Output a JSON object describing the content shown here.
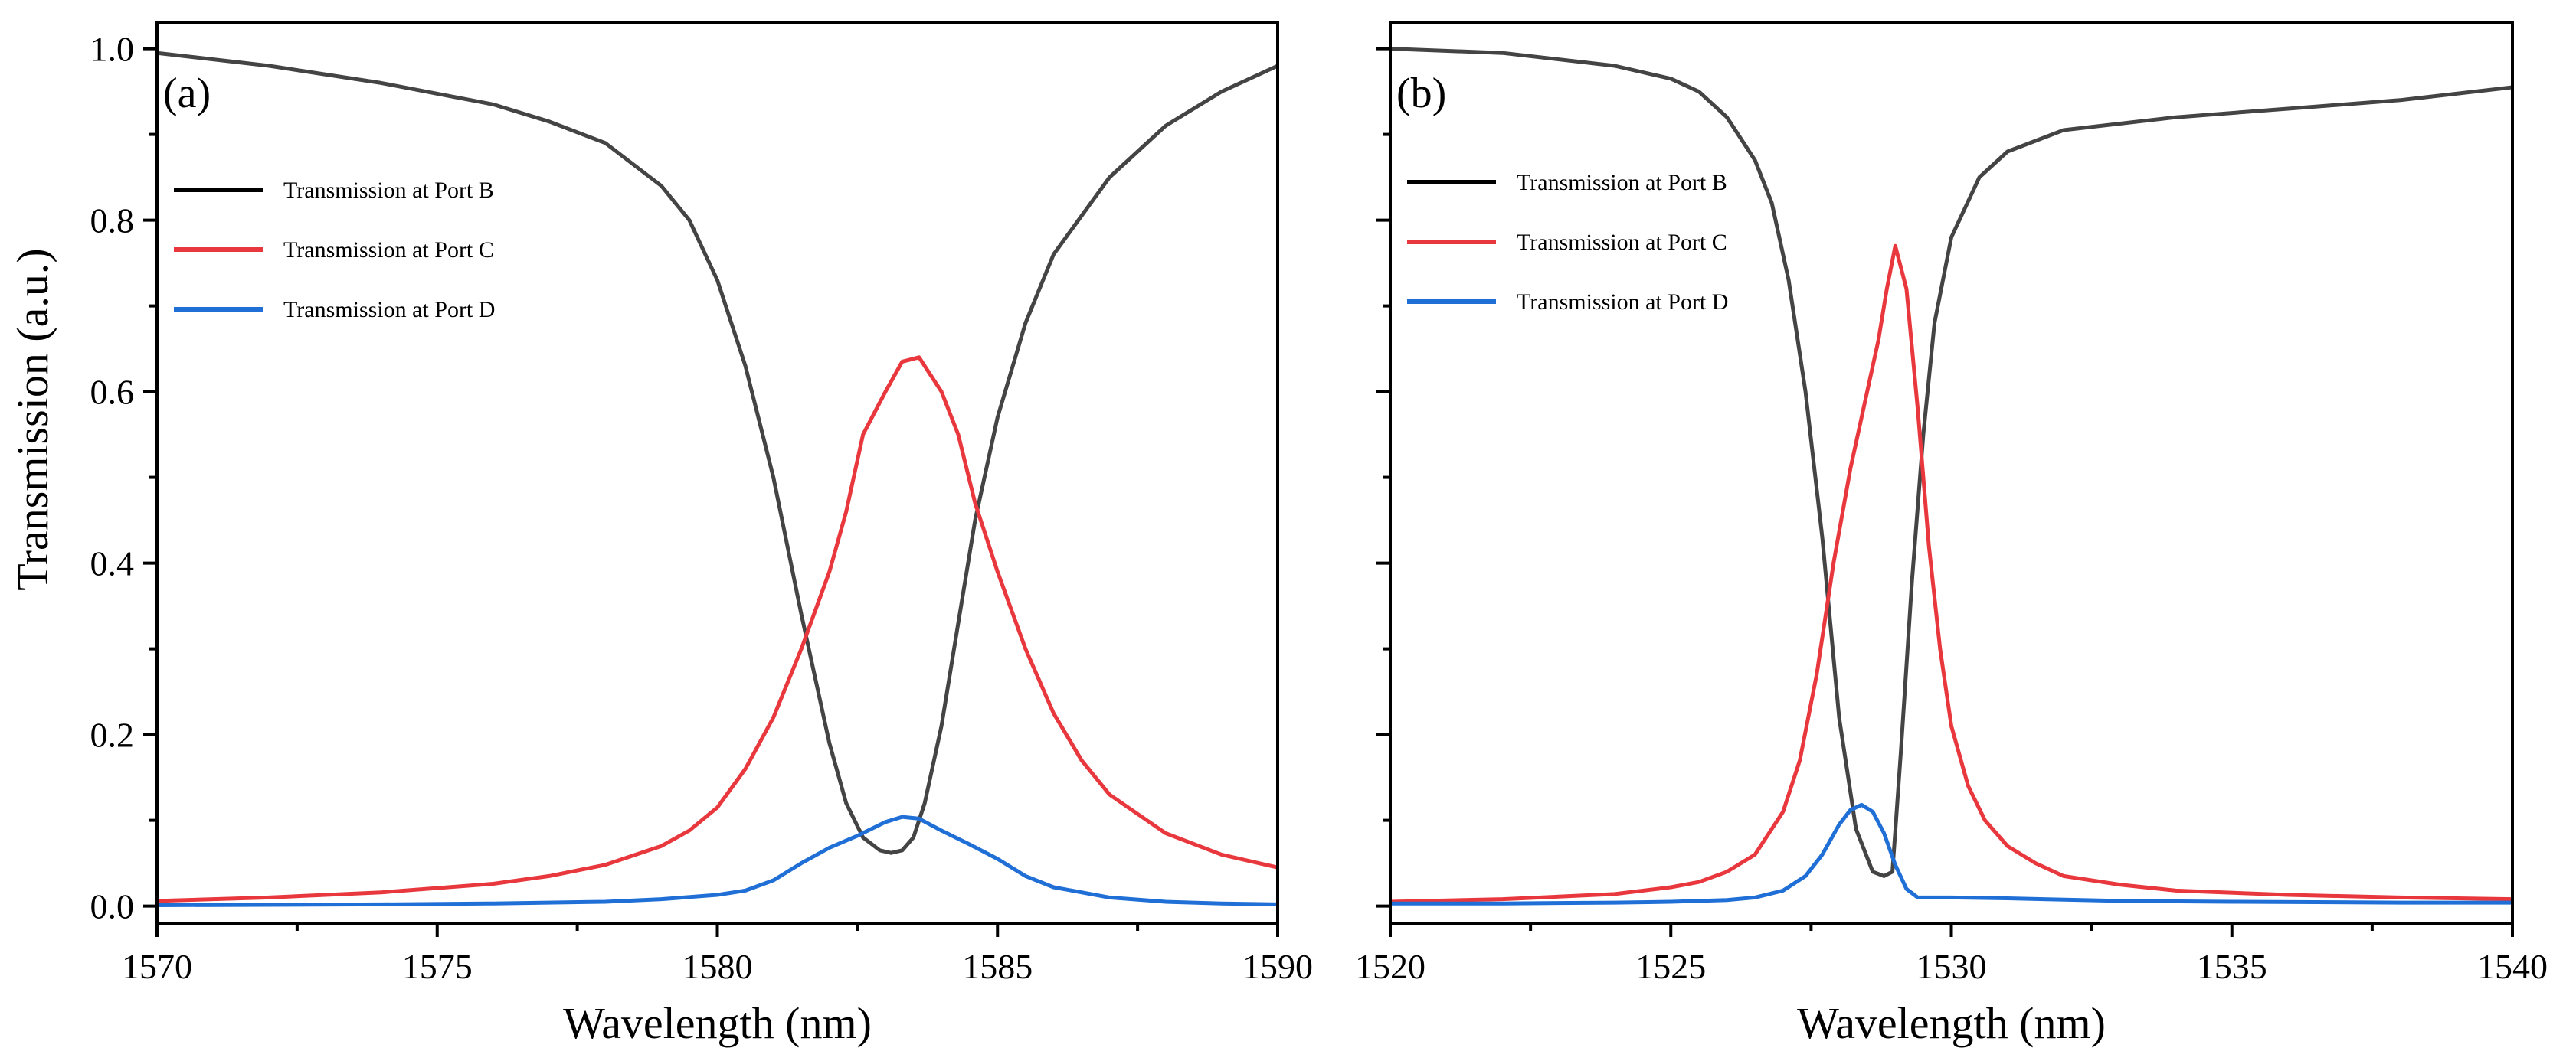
{
  "figure": {
    "ylabel": "Transmission (a.u.)",
    "colors": {
      "port_b": "#444444",
      "port_c": "#e8383d",
      "port_d": "#1f6fd6",
      "axis": "#000000"
    }
  },
  "chart_data": [
    {
      "type": "line",
      "panel_label": "(a)",
      "xlabel": "Wavelength (nm)",
      "ylabel": "Transmission (a.u.)",
      "xlim": [
        1570,
        1590
      ],
      "ylim": [
        -0.02,
        1.03
      ],
      "xticks": [
        1570,
        1575,
        1580,
        1585,
        1590
      ],
      "xtick_labels": [
        "1570",
        "1575",
        "1580",
        "1585",
        "1590"
      ],
      "yticks": [
        0.0,
        0.2,
        0.4,
        0.6,
        0.8,
        1.0
      ],
      "ytick_labels": [
        "0.0",
        "0.2",
        "0.4",
        "0.6",
        "0.8",
        "1.0"
      ],
      "show_ytick_labels": true,
      "legend_position": "upper-left",
      "series": [
        {
          "name": "Transmission at Port B",
          "color": "#444444",
          "x": [
            1570,
            1572,
            1574,
            1576,
            1577,
            1578,
            1579,
            1579.5,
            1580,
            1580.5,
            1581,
            1581.5,
            1582,
            1582.3,
            1582.6,
            1582.9,
            1583.1,
            1583.3,
            1583.5,
            1583.7,
            1584,
            1584.3,
            1584.6,
            1585,
            1585.5,
            1586,
            1587,
            1588,
            1589,
            1590
          ],
          "y": [
            0.995,
            0.98,
            0.96,
            0.935,
            0.915,
            0.89,
            0.84,
            0.8,
            0.73,
            0.63,
            0.5,
            0.34,
            0.19,
            0.12,
            0.08,
            0.065,
            0.062,
            0.065,
            0.08,
            0.12,
            0.21,
            0.33,
            0.45,
            0.57,
            0.68,
            0.76,
            0.85,
            0.91,
            0.95,
            0.98
          ]
        },
        {
          "name": "Transmission at Port C",
          "color": "#e8383d",
          "x": [
            1570,
            1572,
            1574,
            1576,
            1577,
            1578,
            1579,
            1579.5,
            1580,
            1580.5,
            1581,
            1581.5,
            1582,
            1582.3,
            1582.6,
            1583,
            1583.3,
            1583.6,
            1584,
            1584.3,
            1584.6,
            1585,
            1585.5,
            1586,
            1586.5,
            1587,
            1588,
            1589,
            1590
          ],
          "y": [
            0.006,
            0.01,
            0.016,
            0.026,
            0.035,
            0.048,
            0.07,
            0.088,
            0.115,
            0.16,
            0.22,
            0.3,
            0.39,
            0.46,
            0.55,
            0.6,
            0.635,
            0.64,
            0.6,
            0.55,
            0.47,
            0.39,
            0.3,
            0.225,
            0.17,
            0.13,
            0.085,
            0.06,
            0.045
          ]
        },
        {
          "name": "Transmission at Port D",
          "color": "#1f6fd6",
          "x": [
            1570,
            1574,
            1576,
            1578,
            1579,
            1580,
            1580.5,
            1581,
            1581.5,
            1582,
            1582.5,
            1583,
            1583.3,
            1583.6,
            1584,
            1584.5,
            1585,
            1585.5,
            1586,
            1587,
            1588,
            1589,
            1590
          ],
          "y": [
            0.001,
            0.002,
            0.003,
            0.005,
            0.008,
            0.013,
            0.018,
            0.03,
            0.05,
            0.068,
            0.082,
            0.098,
            0.104,
            0.102,
            0.088,
            0.072,
            0.055,
            0.035,
            0.022,
            0.01,
            0.005,
            0.003,
            0.002
          ]
        }
      ]
    },
    {
      "type": "line",
      "panel_label": "(b)",
      "xlabel": "Wavelength (nm)",
      "ylabel": "",
      "xlim": [
        1520,
        1540
      ],
      "ylim": [
        -0.02,
        1.03
      ],
      "xticks": [
        1520,
        1525,
        1530,
        1535,
        1540
      ],
      "xtick_labels": [
        "1520",
        "1525",
        "1530",
        "1535",
        "1540"
      ],
      "yticks": [
        0.0,
        0.2,
        0.4,
        0.6,
        0.8,
        1.0
      ],
      "ytick_labels": [],
      "show_ytick_labels": false,
      "legend_position": "upper-left",
      "series": [
        {
          "name": "Transmission at Port B",
          "color": "#444444",
          "x": [
            1520,
            1522,
            1524,
            1525,
            1525.5,
            1526,
            1526.5,
            1526.8,
            1527.1,
            1527.4,
            1527.7,
            1528,
            1528.3,
            1528.6,
            1528.8,
            1528.95,
            1529.1,
            1529.3,
            1529.5,
            1529.7,
            1530,
            1530.5,
            1531,
            1532,
            1534,
            1536,
            1538,
            1540
          ],
          "y": [
            1.0,
            0.995,
            0.98,
            0.965,
            0.95,
            0.92,
            0.87,
            0.82,
            0.73,
            0.6,
            0.43,
            0.22,
            0.09,
            0.04,
            0.035,
            0.04,
            0.18,
            0.38,
            0.55,
            0.68,
            0.78,
            0.85,
            0.88,
            0.905,
            0.92,
            0.93,
            0.94,
            0.955
          ]
        },
        {
          "name": "Transmission at Port C",
          "color": "#e8383d",
          "x": [
            1520,
            1522,
            1524,
            1525,
            1525.5,
            1526,
            1526.5,
            1527,
            1527.3,
            1527.6,
            1527.9,
            1528.2,
            1528.5,
            1528.7,
            1528.85,
            1529,
            1529.2,
            1529.4,
            1529.6,
            1529.8,
            1530,
            1530.3,
            1530.6,
            1531,
            1531.5,
            1532,
            1533,
            1534,
            1536,
            1538,
            1540
          ],
          "y": [
            0.005,
            0.008,
            0.014,
            0.022,
            0.028,
            0.04,
            0.06,
            0.11,
            0.17,
            0.27,
            0.4,
            0.51,
            0.6,
            0.66,
            0.72,
            0.77,
            0.72,
            0.58,
            0.42,
            0.3,
            0.21,
            0.14,
            0.1,
            0.07,
            0.05,
            0.035,
            0.025,
            0.018,
            0.013,
            0.01,
            0.008
          ]
        },
        {
          "name": "Transmission at Port D",
          "color": "#1f6fd6",
          "x": [
            1520,
            1522,
            1524,
            1525,
            1526,
            1526.5,
            1527,
            1527.4,
            1527.7,
            1528,
            1528.2,
            1528.4,
            1528.6,
            1528.8,
            1529,
            1529.2,
            1529.4,
            1530,
            1531,
            1533,
            1535,
            1538,
            1540
          ],
          "y": [
            0.003,
            0.003,
            0.004,
            0.005,
            0.007,
            0.01,
            0.018,
            0.035,
            0.06,
            0.095,
            0.112,
            0.118,
            0.11,
            0.085,
            0.048,
            0.02,
            0.01,
            0.01,
            0.009,
            0.006,
            0.005,
            0.004,
            0.004
          ]
        }
      ]
    }
  ]
}
